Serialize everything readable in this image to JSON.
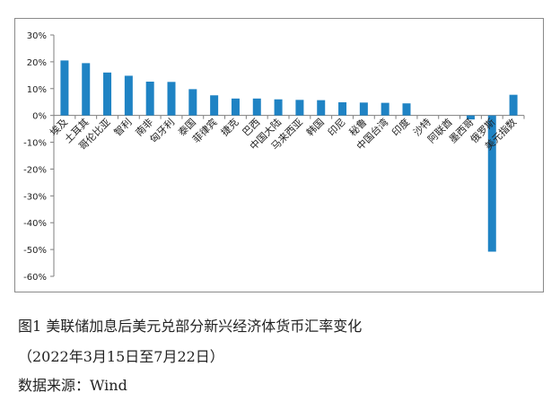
{
  "chart_data": {
    "type": "bar",
    "categories": [
      "埃及",
      "土耳其",
      "哥伦比亚",
      "智利",
      "南非",
      "匈牙利",
      "泰国",
      "菲律宾",
      "捷克",
      "巴西",
      "中国大陆",
      "马来西亚",
      "韩国",
      "印尼",
      "秘鲁",
      "中国台湾",
      "印度",
      "沙特",
      "阿联酋",
      "墨西哥",
      "俄罗斯",
      "美元指数"
    ],
    "values": [
      20.5,
      19.5,
      16.0,
      14.8,
      12.6,
      12.5,
      9.8,
      7.5,
      6.3,
      6.3,
      6.0,
      5.8,
      5.7,
      4.9,
      4.8,
      4.7,
      4.5,
      0.0,
      0.0,
      -1.5,
      -50.8,
      7.7
    ],
    "title": "",
    "xlabel": "",
    "ylabel": "",
    "ylim": [
      -60,
      30
    ],
    "yticks": [
      30,
      20,
      10,
      0,
      -10,
      -20,
      -30,
      -40,
      -50,
      -60
    ],
    "ytick_labels": [
      "30%",
      "20%",
      "10%",
      "0%",
      "-10%",
      "-20%",
      "-30%",
      "-40%",
      "-50%",
      "-60%"
    ],
    "grid": false,
    "legend": "none",
    "bar_color": "#1f83c4"
  },
  "captions": {
    "figure_title": "图1  美联储加息后美元兑部分新兴经济体货币汇率变化",
    "date_range": "（2022年3月15日至7月22日）",
    "source": "数据来源：Wind"
  }
}
